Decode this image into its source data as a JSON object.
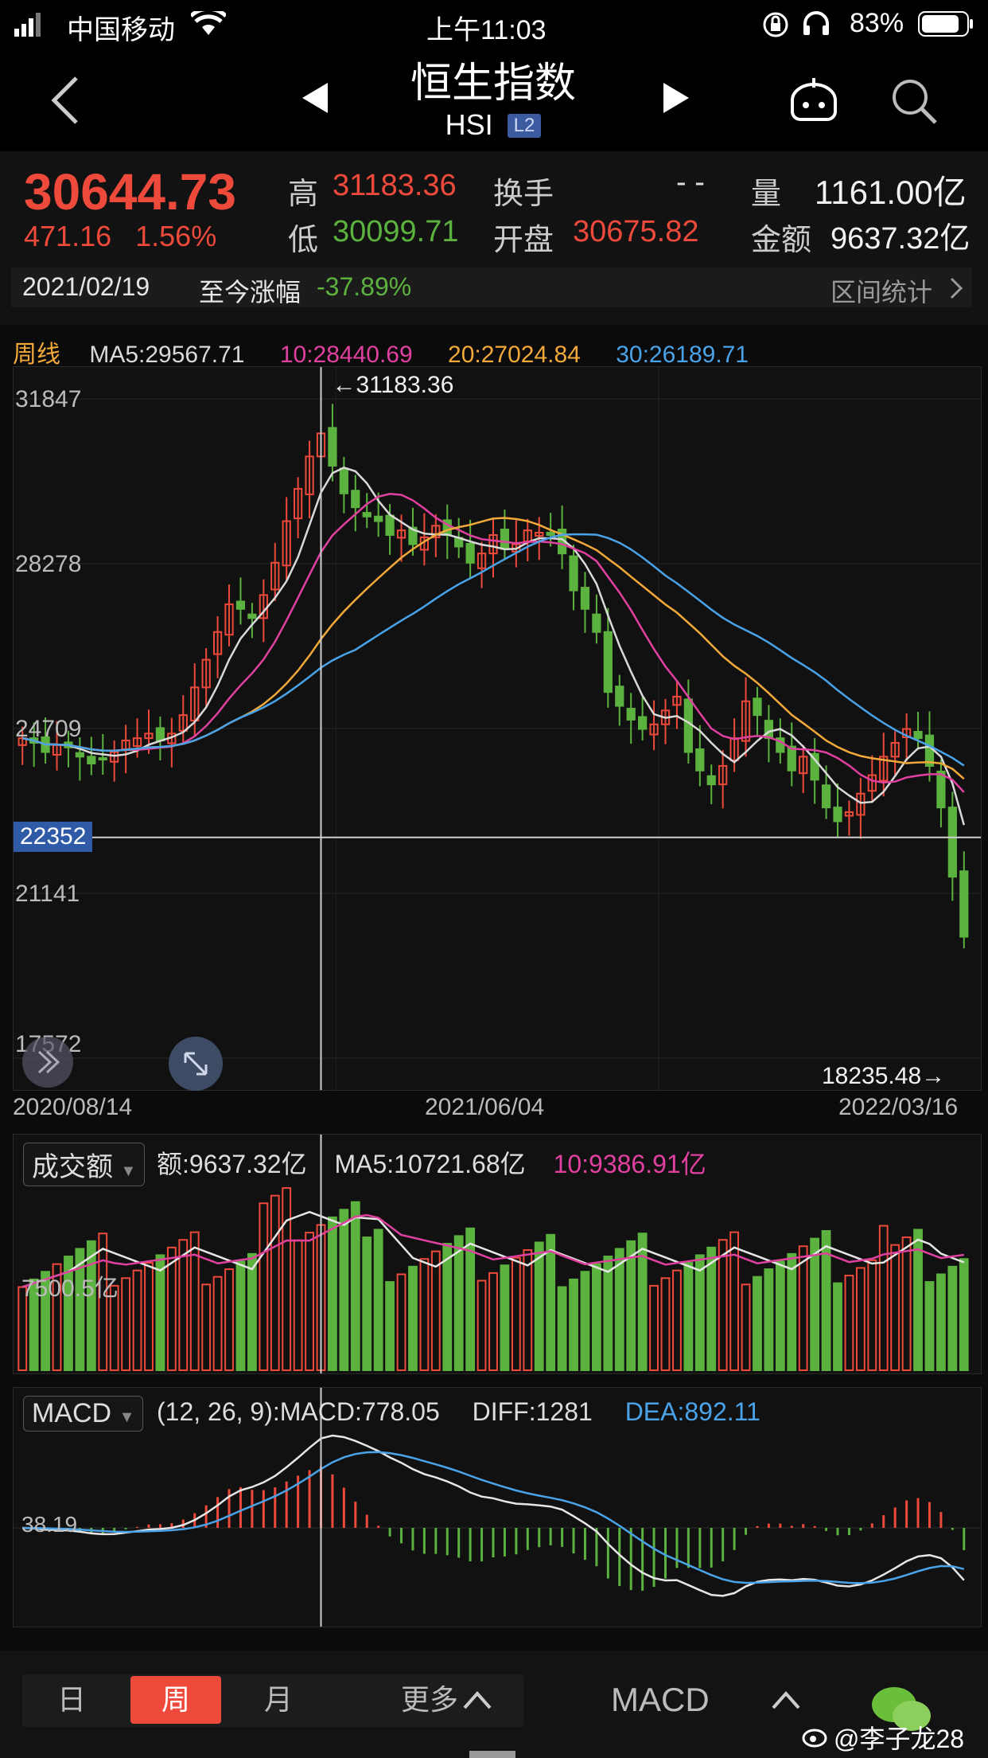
{
  "status": {
    "carrier": "中国移动",
    "time": "上午11:03",
    "battery": "83%"
  },
  "header": {
    "title": "恒生指数",
    "code": "HSI",
    "badge": "L2"
  },
  "quote": {
    "price": "30644.73",
    "change": "471.16",
    "change_pct": "1.56%",
    "high_label": "高",
    "high": "31183.36",
    "low_label": "低",
    "low": "30099.71",
    "turnover_label": "换手",
    "turnover": "- -",
    "open_label": "开盘",
    "open": "30675.82",
    "volume_label": "量",
    "volume": "1161.00亿",
    "amount_label": "金额",
    "amount": "9637.32亿"
  },
  "range_bar": {
    "date": "2021/02/19",
    "label": "至今涨幅",
    "value": "-37.89%",
    "stats_link": "区间统计"
  },
  "main_chart": {
    "period": "周线",
    "ma5": "MA5:29567.71",
    "ma10": "10:28440.69",
    "ma20": "20:27024.84",
    "ma30": "30:26189.71",
    "high_marker": "←31183.36",
    "low_marker": "18235.48→",
    "crosshair_value": "22352"
  },
  "volume_panel": {
    "selector": "成交额",
    "amount": "额:9637.32亿",
    "ma5": "MA5:10721.68亿",
    "ma10": "10:9386.91亿",
    "level_label": "7500.5亿"
  },
  "macd_panel": {
    "selector": "MACD",
    "params": "(12, 26, 9):MACD:778.05",
    "diff": "DIFF:1281",
    "dea": "DEA:892.11",
    "level_label": "38.19"
  },
  "bottom": {
    "tabs": [
      "日",
      "周",
      "月"
    ],
    "more": "更多",
    "indicator": "MACD",
    "watermark": "@李子龙28"
  },
  "colors": {
    "up": "#ee4a3b",
    "down": "#5cb23e",
    "ma5": "#d9d9d9",
    "ma10": "#e040a0",
    "ma20": "#f2a93a",
    "ma30": "#4aa3e8",
    "active_tab": "#ee4a3b"
  },
  "chart_data": {
    "type": "candlestick",
    "y_ticks": [
      "31847",
      "28278",
      "24709",
      "21141",
      "17572"
    ],
    "x_ticks": [
      "2020/08/14",
      "2021/06/04",
      "2022/03/16"
    ],
    "ylim": [
      17572,
      31847
    ],
    "series": [
      {
        "name": "MA5",
        "last": 29567.71
      },
      {
        "name": "MA10",
        "last": 28440.69
      },
      {
        "name": "MA20",
        "last": 27024.84
      },
      {
        "name": "MA30",
        "last": 26189.71
      }
    ],
    "close_path": [
      24500,
      24400,
      24200,
      24350,
      24300,
      24100,
      23950,
      24050,
      24200,
      24450,
      24500,
      24600,
      24450,
      24600,
      25000,
      25600,
      26200,
      26800,
      27400,
      27300,
      27100,
      27600,
      28300,
      29200,
      29900,
      30600,
      31100,
      30400,
      29800,
      29500,
      29300,
      29200,
      28900,
      29000,
      28700,
      28850,
      29100,
      28900,
      28650,
      28300,
      28500,
      28900,
      28600,
      28700,
      29000,
      28950,
      28900,
      28500,
      27700,
      27300,
      26800,
      25500,
      25200,
      24900,
      24700,
      24800,
      25100,
      25400,
      24200,
      23800,
      23500,
      23900,
      24500,
      25300,
      25000,
      24500,
      24200,
      23800,
      24100,
      23600,
      23000,
      22700,
      22900,
      23300,
      23700,
      24100,
      24400,
      24700,
      24500,
      23900,
      23000,
      21500,
      20200
    ]
  }
}
